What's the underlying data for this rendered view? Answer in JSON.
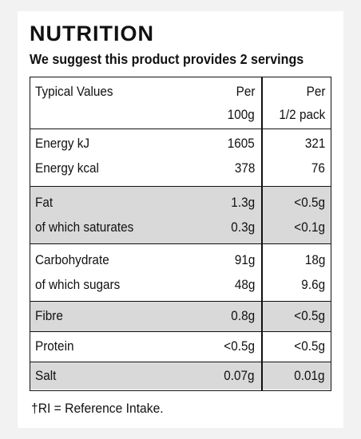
{
  "title": "NUTRITION",
  "subtitle": "We suggest this product provides 2 servings",
  "header": {
    "label": "Typical Values",
    "col1_line1": "Per",
    "col1_line2": "100g",
    "col2_line1": "Per",
    "col2_line2": "1/2 pack"
  },
  "rows": [
    {
      "label": "Energy kJ",
      "per100": "1605",
      "perHalf": "321"
    },
    {
      "label": "Energy kcal",
      "per100": "378",
      "perHalf": "76"
    },
    {
      "label": "Fat",
      "per100": "1.3g",
      "perHalf": "<0.5g"
    },
    {
      "label": "of which saturates",
      "per100": "0.3g",
      "perHalf": "<0.1g"
    },
    {
      "label": "Carbohydrate",
      "per100": "91g",
      "perHalf": "18g"
    },
    {
      "label": "of which sugars",
      "per100": "48g",
      "perHalf": "9.6g"
    },
    {
      "label": "Fibre",
      "per100": "0.8g",
      "perHalf": "<0.5g"
    },
    {
      "label": "Protein",
      "per100": "<0.5g",
      "perHalf": "<0.5g"
    },
    {
      "label": "Salt",
      "per100": "0.07g",
      "perHalf": "0.01g"
    }
  ],
  "footnote": "†RI = Reference Intake.",
  "colors": {
    "shade": "#d9d9d9",
    "text": "#111111"
  }
}
